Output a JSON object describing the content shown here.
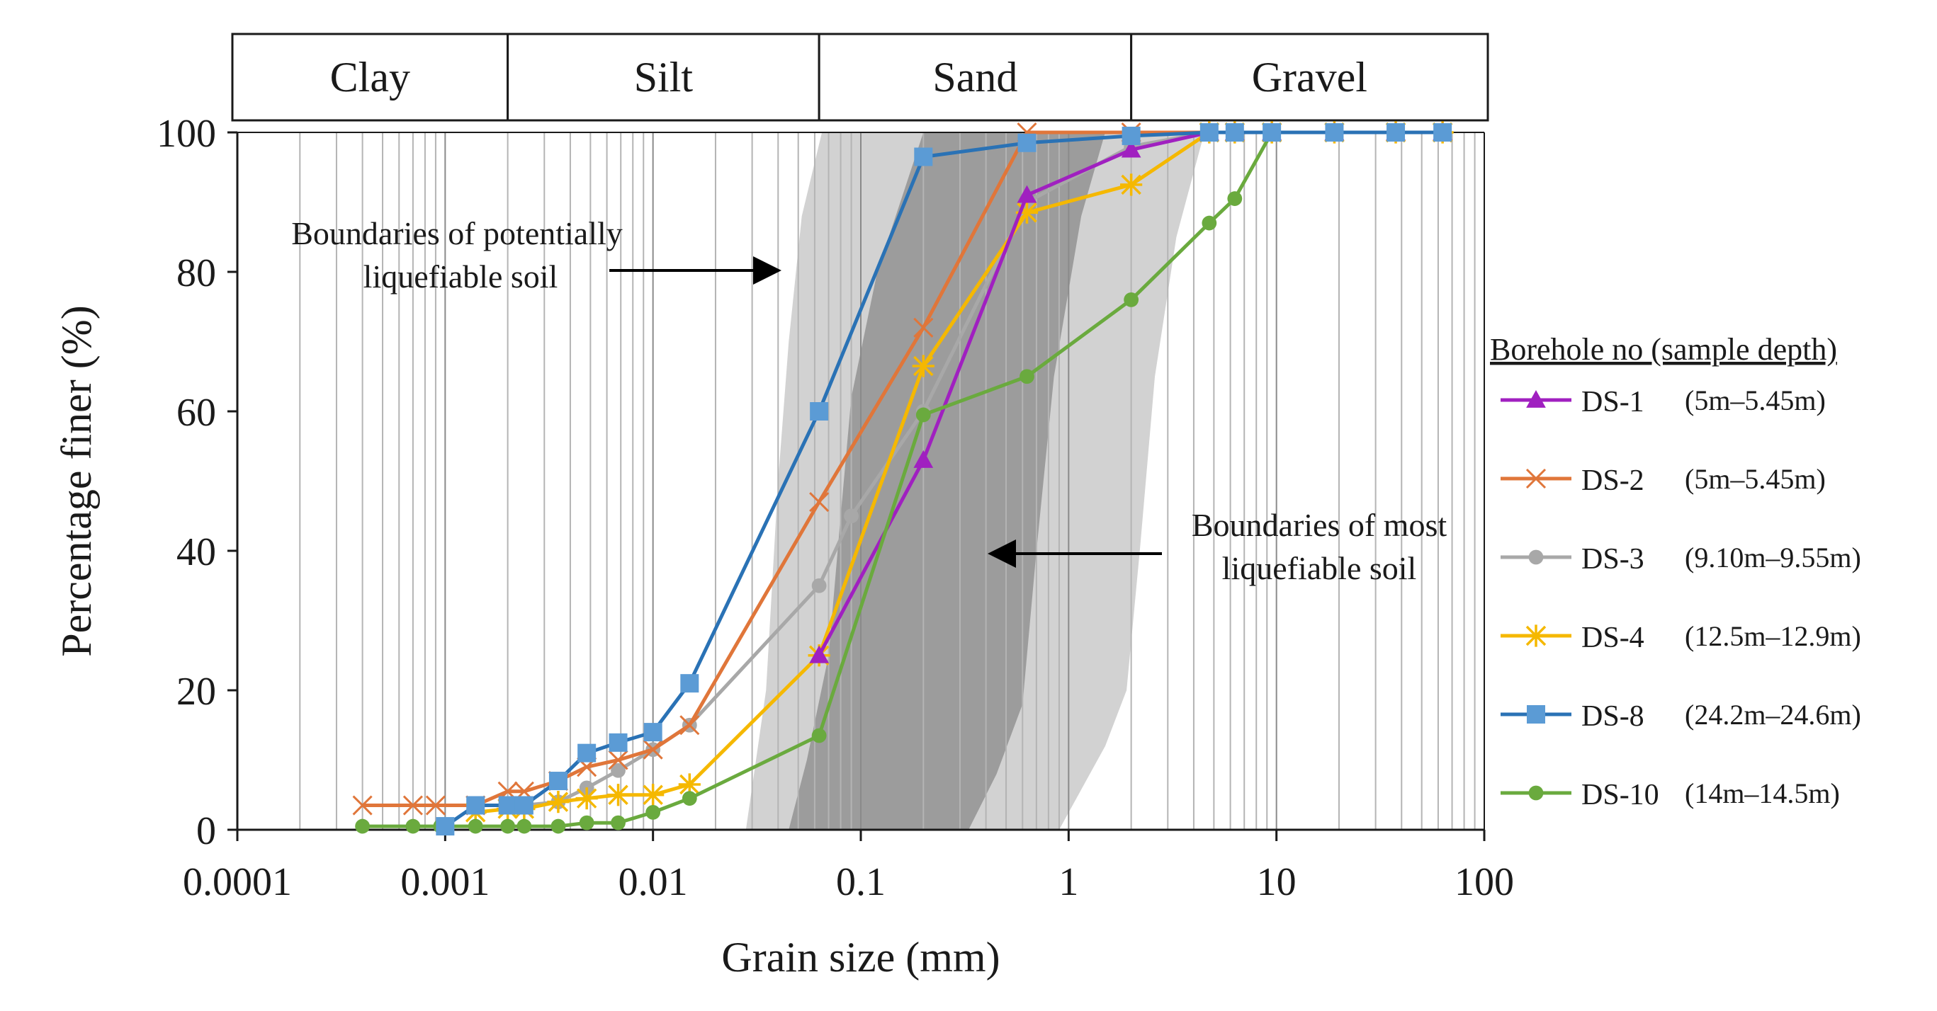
{
  "chart_data": {
    "type": "line",
    "x_scale": "log",
    "xlabel": "Grain size (mm)",
    "ylabel": "Percentage finer (%)",
    "xlim": [
      0.0001,
      100
    ],
    "ylim": [
      0,
      100
    ],
    "x_ticks": [
      {
        "value": 0.0001,
        "label": "0.0001"
      },
      {
        "value": 0.001,
        "label": "0.001"
      },
      {
        "value": 0.01,
        "label": "0.01"
      },
      {
        "value": 0.1,
        "label": "0.1"
      },
      {
        "value": 1,
        "label": "1"
      },
      {
        "value": 10,
        "label": "10"
      },
      {
        "value": 100,
        "label": "100"
      }
    ],
    "y_ticks": [
      {
        "value": 0,
        "label": "0"
      },
      {
        "value": 20,
        "label": "20"
      },
      {
        "value": 40,
        "label": "40"
      },
      {
        "value": 60,
        "label": "60"
      },
      {
        "value": 80,
        "label": "80"
      },
      {
        "value": 100,
        "label": "100"
      }
    ],
    "grid": "vertical minor log gridlines",
    "soil_classes": [
      {
        "label": "Clay",
        "from": 0.0001,
        "to": 0.002
      },
      {
        "label": "Silt",
        "from": 0.002,
        "to": 0.063
      },
      {
        "label": "Sand",
        "from": 0.063,
        "to": 2
      },
      {
        "label": "Gravel",
        "from": 2,
        "to": 100
      }
    ],
    "regions": [
      {
        "name": "potentially liquefiable",
        "color": "#d2d2d2",
        "left": [
          [
            0.028,
            0
          ],
          [
            0.035,
            20
          ],
          [
            0.04,
            50
          ],
          [
            0.045,
            70
          ],
          [
            0.052,
            88
          ],
          [
            0.065,
            100
          ]
        ],
        "right": [
          [
            0.9,
            0
          ],
          [
            1.5,
            12
          ],
          [
            1.9,
            20
          ],
          [
            2.2,
            40
          ],
          [
            2.6,
            65
          ],
          [
            3.3,
            85
          ],
          [
            4.5,
            100
          ]
        ]
      },
      {
        "name": "most liquefiable",
        "color": "#9c9c9c",
        "left": [
          [
            0.045,
            0
          ],
          [
            0.055,
            10
          ],
          [
            0.07,
            25
          ],
          [
            0.08,
            45
          ],
          [
            0.09,
            62
          ],
          [
            0.12,
            80
          ],
          [
            0.2,
            100
          ]
        ],
        "right": [
          [
            0.33,
            0
          ],
          [
            0.45,
            8
          ],
          [
            0.6,
            18
          ],
          [
            0.7,
            40
          ],
          [
            0.85,
            65
          ],
          [
            1.15,
            88
          ],
          [
            1.5,
            100
          ]
        ]
      }
    ],
    "annotations": [
      {
        "text_lines": [
          "Boundaries of potentially",
          "liquefiable soil"
        ]
      },
      {
        "text_lines": [
          "Boundaries of most",
          "liquefiable soil"
        ]
      }
    ],
    "legend_title": "Borehole no (sample depth)",
    "series": [
      {
        "name": "DS-1",
        "depth": "(5m–5.45m)",
        "color": "#a020c0",
        "marker": "triangle",
        "points": [
          [
            0.063,
            25
          ],
          [
            0.2,
            53
          ],
          [
            0.63,
            91
          ],
          [
            2,
            97.5
          ],
          [
            4.75,
            100
          ],
          [
            6.3,
            100
          ],
          [
            9.5,
            100
          ],
          [
            19,
            100
          ],
          [
            37.5,
            100
          ],
          [
            63,
            100
          ]
        ]
      },
      {
        "name": "DS-2",
        "depth": "(5m–5.45m)",
        "color": "#e0763a",
        "marker": "x",
        "points": [
          [
            0.0004,
            3.5
          ],
          [
            0.0007,
            3.5
          ],
          [
            0.0009,
            3.5
          ],
          [
            0.0014,
            3.5
          ],
          [
            0.002,
            5.5
          ],
          [
            0.0024,
            5.5
          ],
          [
            0.0035,
            7
          ],
          [
            0.0048,
            9
          ],
          [
            0.0068,
            10
          ],
          [
            0.01,
            11.5
          ],
          [
            0.015,
            15
          ],
          [
            0.063,
            47
          ],
          [
            0.2,
            72
          ],
          [
            0.63,
            100
          ],
          [
            2,
            100
          ],
          [
            4.75,
            100
          ],
          [
            6.3,
            100
          ],
          [
            9.5,
            100
          ],
          [
            19,
            100
          ],
          [
            37.5,
            100
          ],
          [
            63,
            100
          ]
        ]
      },
      {
        "name": "DS-3",
        "depth": "(9.10m–9.55m)",
        "color": "#a8a8a8",
        "marker": "circle",
        "points": [
          [
            0.0014,
            3.5
          ],
          [
            0.002,
            3.5
          ],
          [
            0.0024,
            3.5
          ],
          [
            0.0035,
            4
          ],
          [
            0.0048,
            6
          ],
          [
            0.0068,
            8.5
          ],
          [
            0.01,
            11.5
          ],
          [
            0.015,
            15
          ],
          [
            0.063,
            35
          ],
          [
            0.09,
            45
          ],
          [
            0.2,
            60
          ],
          [
            0.63,
            90
          ],
          [
            2,
            98
          ],
          [
            4.75,
            100
          ],
          [
            6.3,
            100
          ],
          [
            9.5,
            100
          ],
          [
            19,
            100
          ],
          [
            37.5,
            100
          ],
          [
            63,
            100
          ]
        ]
      },
      {
        "name": "DS-4",
        "depth": "(12.5m–12.9m)",
        "color": "#f5b800",
        "marker": "star",
        "points": [
          [
            0.0014,
            2.5
          ],
          [
            0.002,
            3
          ],
          [
            0.0024,
            3
          ],
          [
            0.0035,
            4
          ],
          [
            0.0048,
            4.5
          ],
          [
            0.0068,
            5
          ],
          [
            0.01,
            5
          ],
          [
            0.015,
            6.5
          ],
          [
            0.063,
            25
          ],
          [
            0.2,
            66.5
          ],
          [
            0.63,
            88.5
          ],
          [
            2,
            92.5
          ],
          [
            4.75,
            100
          ],
          [
            6.3,
            100
          ],
          [
            9.5,
            100
          ],
          [
            19,
            100
          ],
          [
            37.5,
            100
          ],
          [
            63,
            100
          ]
        ]
      },
      {
        "name": "DS-8",
        "depth": "(24.2m–24.6m)",
        "color": "#2a72b5",
        "marker": "square",
        "marker_color": "#5b9bd5",
        "points": [
          [
            0.001,
            0.5
          ],
          [
            0.0014,
            3.5
          ],
          [
            0.002,
            3.5
          ],
          [
            0.0024,
            3.5
          ],
          [
            0.0035,
            7
          ],
          [
            0.0048,
            11
          ],
          [
            0.0068,
            12.5
          ],
          [
            0.01,
            14
          ],
          [
            0.015,
            21
          ],
          [
            0.063,
            60
          ],
          [
            0.2,
            96.5
          ],
          [
            0.63,
            98.5
          ],
          [
            2,
            99.5
          ],
          [
            4.75,
            100
          ],
          [
            6.3,
            100
          ],
          [
            9.5,
            100
          ],
          [
            19,
            100
          ],
          [
            37.5,
            100
          ],
          [
            63,
            100
          ]
        ]
      },
      {
        "name": "DS-10",
        "depth": "(14m–14.5m)",
        "color": "#6aaa3e",
        "marker": "circle",
        "points": [
          [
            0.0004,
            0.5
          ],
          [
            0.0007,
            0.5
          ],
          [
            0.00095,
            0.5
          ],
          [
            0.0014,
            0.5
          ],
          [
            0.002,
            0.5
          ],
          [
            0.0024,
            0.5
          ],
          [
            0.0035,
            0.5
          ],
          [
            0.0048,
            1
          ],
          [
            0.0068,
            1
          ],
          [
            0.01,
            2.5
          ],
          [
            0.015,
            4.5
          ],
          [
            0.063,
            13.5
          ],
          [
            0.2,
            59.5
          ],
          [
            0.63,
            65
          ],
          [
            2,
            76
          ],
          [
            4.75,
            87
          ],
          [
            6.3,
            90.5
          ],
          [
            9.5,
            100
          ],
          [
            19,
            100
          ],
          [
            37.5,
            100
          ],
          [
            63,
            100
          ]
        ]
      }
    ]
  }
}
